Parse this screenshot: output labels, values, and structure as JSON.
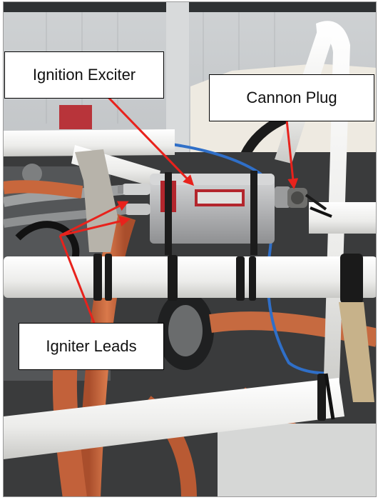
{
  "callouts": {
    "ignition_exciter": "Ignition Exciter",
    "cannon_plug": "Cannon Plug",
    "igniter_leads": "Igniter Leads"
  },
  "colors": {
    "arrow": "#e8221c",
    "exciter_body": "#b9babb",
    "exciter_label": "#b3262d",
    "tubing": "#f1f1ef",
    "hose": "#c9663c",
    "wire": "#2f6fc8"
  }
}
